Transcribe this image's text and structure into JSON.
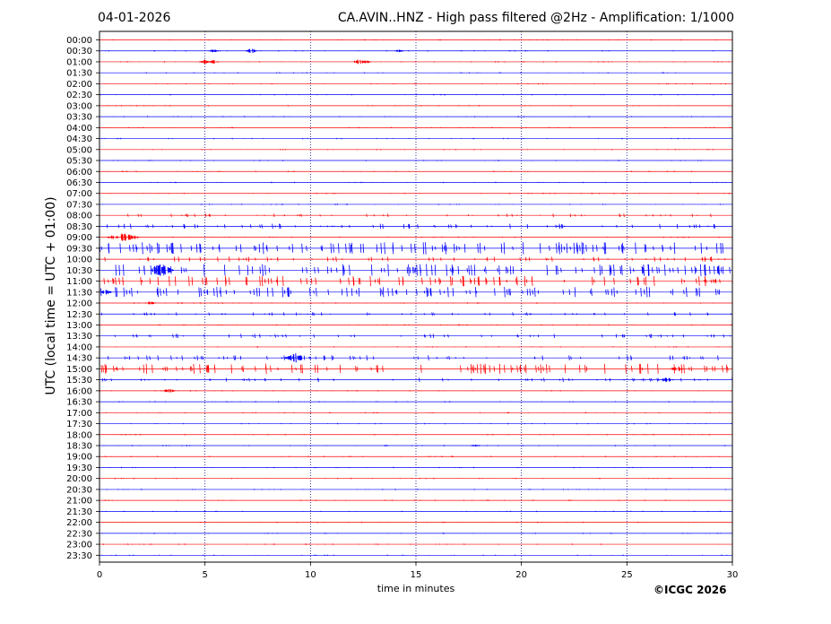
{
  "header": {
    "date": "04-01-2026",
    "title": "CA.AVIN..HNZ - High pass filtered @2Hz - Amplification: 1/1000"
  },
  "footer": {
    "copyright": "©ICGC 2026"
  },
  "chart_data": {
    "type": "line",
    "title": "CA.AVIN..HNZ - High pass filtered @2Hz - Amplification: 1/1000",
    "xlabel": "time in minutes",
    "ylabel": "UTC (local time = UTC + 01:00)",
    "xlim": [
      0,
      30
    ],
    "xticks": [
      0,
      5,
      10,
      15,
      20,
      25,
      30
    ],
    "grid": "vertical dotted lines at 5-minute intervals",
    "trace_colors": [
      "#ff0000",
      "#0000ff"
    ],
    "rows": [
      "00:00",
      "00:30",
      "01:00",
      "01:30",
      "02:00",
      "02:30",
      "03:00",
      "03:30",
      "04:00",
      "04:30",
      "05:00",
      "05:30",
      "06:00",
      "06:30",
      "07:00",
      "07:30",
      "08:00",
      "08:30",
      "09:00",
      "09:30",
      "10:00",
      "10:30",
      "11:00",
      "11:30",
      "12:00",
      "12:30",
      "13:00",
      "13:30",
      "14:00",
      "14:30",
      "15:00",
      "15:30",
      "16:00",
      "16:30",
      "17:00",
      "17:30",
      "18:00",
      "18:30",
      "19:00",
      "19:30",
      "20:00",
      "20:30",
      "21:00",
      "21:30",
      "22:00",
      "22:30",
      "23:00",
      "23:30"
    ],
    "events": [
      {
        "row": "00:30",
        "minute": 7.2,
        "amplitude": 0.4
      },
      {
        "row": "00:30",
        "minute": 5.4,
        "amplitude": 0.25
      },
      {
        "row": "00:30",
        "minute": 14.2,
        "amplitude": 0.2
      },
      {
        "row": "01:00",
        "minute": 5.0,
        "amplitude": 0.35
      },
      {
        "row": "01:00",
        "minute": 5.4,
        "amplitude": 0.3
      },
      {
        "row": "01:00",
        "minute": 12.3,
        "amplitude": 0.45
      },
      {
        "row": "01:00",
        "minute": 12.6,
        "amplitude": 0.3
      },
      {
        "row": "09:00",
        "minute": 1.2,
        "amplitude": 0.9
      },
      {
        "row": "09:00",
        "minute": 0.6,
        "amplitude": 0.3
      },
      {
        "row": "09:00",
        "minute": 1.6,
        "amplitude": 0.35
      },
      {
        "row": "10:30",
        "minute": 2.9,
        "amplitude": 1.2
      },
      {
        "row": "10:30",
        "minute": 3.1,
        "amplitude": 0.8
      },
      {
        "row": "11:30",
        "minute": 0.3,
        "amplitude": 0.4
      },
      {
        "row": "12:00",
        "minute": 2.4,
        "amplitude": 0.3
      },
      {
        "row": "14:30",
        "minute": 9.3,
        "amplitude": 0.9
      },
      {
        "row": "14:30",
        "minute": 9.0,
        "amplitude": 0.35
      },
      {
        "row": "15:00",
        "minute": 27.3,
        "amplitude": 0.35
      },
      {
        "row": "15:30",
        "minute": 26.9,
        "amplitude": 0.45
      },
      {
        "row": "16:00",
        "minute": 3.3,
        "amplitude": 0.4
      },
      {
        "row": "18:30",
        "minute": 17.8,
        "amplitude": 0.2
      }
    ],
    "noisy_rows": [
      {
        "row": "09:30",
        "level": 0.35
      },
      {
        "row": "10:00",
        "level": 0.15
      },
      {
        "row": "10:30",
        "level": 0.35
      },
      {
        "row": "11:00",
        "level": 0.3
      },
      {
        "row": "11:30",
        "level": 0.3
      },
      {
        "row": "15:00",
        "level": 0.3
      },
      {
        "row": "08:30",
        "level": 0.15
      },
      {
        "row": "08:00",
        "level": 0.1
      },
      {
        "row": "12:30",
        "level": 0.1
      },
      {
        "row": "13:30",
        "level": 0.12
      },
      {
        "row": "14:30",
        "level": 0.15
      },
      {
        "row": "15:30",
        "level": 0.12
      }
    ]
  }
}
